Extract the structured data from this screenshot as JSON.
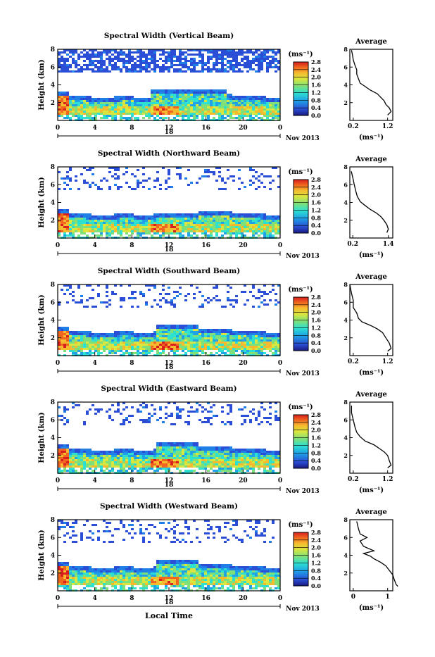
{
  "figure": {
    "xlabel": "Local Time",
    "ylabel": "Height (km)",
    "day_label": "18",
    "month_label": "Nov 2013",
    "colorbar_unit": "(ms⁻¹)",
    "avg_title": "Average",
    "avg_xlabel": "(ms⁻¹)"
  },
  "chart_data": [
    {
      "type": "heatmap",
      "title": "Spectral Width (Vertical Beam)",
      "xlim": [
        0,
        24
      ],
      "ylim": [
        0,
        8
      ],
      "x_ticks": [
        "0",
        "4",
        "8",
        "12",
        "16",
        "20",
        "0"
      ],
      "y_ticks": [
        "2",
        "4",
        "6",
        "8"
      ],
      "colorbar": {
        "min": 0.0,
        "max": 2.8,
        "ticks": [
          "0.0",
          "0.4",
          "0.8",
          "1.2",
          "1.6",
          "2.0",
          "2.4",
          "2.8"
        ]
      },
      "avg_profile": {
        "x_ticks": [
          "0.2",
          "1.2"
        ],
        "y_ticks": [
          "2",
          "4",
          "6",
          "8"
        ],
        "points": [
          [
            0.15,
            7.9
          ],
          [
            0.18,
            7.3
          ],
          [
            0.2,
            6.8
          ],
          [
            0.25,
            6.2
          ],
          [
            0.3,
            5.7
          ],
          [
            0.3,
            5.2
          ],
          [
            0.35,
            4.7
          ],
          [
            0.4,
            4.2
          ],
          [
            0.55,
            3.8
          ],
          [
            0.7,
            3.4
          ],
          [
            0.9,
            3.0
          ],
          [
            1.0,
            2.6
          ],
          [
            1.1,
            2.2
          ],
          [
            1.15,
            1.8
          ],
          [
            1.25,
            1.4
          ],
          [
            1.3,
            1.0
          ],
          [
            1.2,
            0.6
          ]
        ]
      }
    },
    {
      "type": "heatmap",
      "title": "Spectral Width (Northward Beam)",
      "xlim": [
        0,
        24
      ],
      "ylim": [
        0,
        8
      ],
      "x_ticks": [
        "0",
        "4",
        "8",
        "12",
        "16",
        "20",
        "0"
      ],
      "y_ticks": [
        "2",
        "4",
        "6",
        "8"
      ],
      "colorbar": {
        "min": 0.0,
        "max": 2.8,
        "ticks": [
          "0.0",
          "0.4",
          "0.8",
          "1.2",
          "1.6",
          "2.0",
          "2.4",
          "2.8"
        ]
      },
      "avg_profile": {
        "x_ticks": [
          "0.2",
          "1.4"
        ],
        "y_ticks": [
          "2",
          "4",
          "6",
          "8"
        ],
        "points": [
          [
            0.15,
            7.5
          ],
          [
            0.2,
            6.8
          ],
          [
            0.25,
            6.0
          ],
          [
            0.3,
            5.3
          ],
          [
            0.35,
            4.7
          ],
          [
            0.45,
            4.1
          ],
          [
            0.6,
            3.7
          ],
          [
            0.8,
            3.2
          ],
          [
            1.0,
            2.8
          ],
          [
            1.15,
            2.4
          ],
          [
            1.25,
            2.0
          ],
          [
            1.35,
            1.5
          ],
          [
            1.4,
            1.0
          ],
          [
            1.35,
            0.6
          ]
        ]
      }
    },
    {
      "type": "heatmap",
      "title": "Spectral Width (Southward Beam)",
      "xlim": [
        0,
        24
      ],
      "ylim": [
        0,
        8
      ],
      "x_ticks": [
        "0",
        "4",
        "8",
        "12",
        "16",
        "20",
        "0"
      ],
      "y_ticks": [
        "2",
        "4",
        "6",
        "8"
      ],
      "colorbar": {
        "min": 0.0,
        "max": 2.8,
        "ticks": [
          "0.0",
          "0.4",
          "0.8",
          "1.2",
          "1.6",
          "2.0",
          "2.4",
          "2.8"
        ]
      },
      "avg_profile": {
        "x_ticks": [
          "0.2",
          "1.2"
        ],
        "y_ticks": [
          "2",
          "4",
          "6",
          "8"
        ],
        "points": [
          [
            0.1,
            8.0
          ],
          [
            0.15,
            7.0
          ],
          [
            0.2,
            6.2
          ],
          [
            0.2,
            5.4
          ],
          [
            0.3,
            4.8
          ],
          [
            0.35,
            4.2
          ],
          [
            0.45,
            3.8
          ],
          [
            0.7,
            3.4
          ],
          [
            0.9,
            3.0
          ],
          [
            1.05,
            2.6
          ],
          [
            1.15,
            2.0
          ],
          [
            1.25,
            1.4
          ],
          [
            1.3,
            0.8
          ],
          [
            1.2,
            0.5
          ]
        ]
      }
    },
    {
      "type": "heatmap",
      "title": "Spectral Width (Eastward Beam)",
      "xlim": [
        0,
        24
      ],
      "ylim": [
        0,
        8
      ],
      "x_ticks": [
        "0",
        "4",
        "8",
        "12",
        "16",
        "20",
        "0"
      ],
      "y_ticks": [
        "2",
        "4",
        "6",
        "8"
      ],
      "colorbar": {
        "min": 0.0,
        "max": 2.8,
        "ticks": [
          "0.0",
          "0.4",
          "0.8",
          "1.2",
          "1.6",
          "2.0",
          "2.4",
          "2.8"
        ]
      },
      "avg_profile": {
        "x_ticks": [
          "0.2",
          "1.2"
        ],
        "y_ticks": [
          "2",
          "4",
          "6",
          "8"
        ],
        "points": [
          [
            0.15,
            7.6
          ],
          [
            0.15,
            6.8
          ],
          [
            0.2,
            6.0
          ],
          [
            0.25,
            5.2
          ],
          [
            0.3,
            4.6
          ],
          [
            0.4,
            4.1
          ],
          [
            0.55,
            3.6
          ],
          [
            0.8,
            3.2
          ],
          [
            0.95,
            2.8
          ],
          [
            1.1,
            2.4
          ],
          [
            1.2,
            2.0
          ],
          [
            1.25,
            1.4
          ],
          [
            1.3,
            0.9
          ],
          [
            1.2,
            0.6
          ]
        ]
      }
    },
    {
      "type": "heatmap",
      "title": "Spectral Width (Westward Beam)",
      "xlim": [
        0,
        24
      ],
      "ylim": [
        0,
        8
      ],
      "x_ticks": [
        "0",
        "4",
        "8",
        "12",
        "16",
        "20",
        "0"
      ],
      "y_ticks": [
        "2",
        "4",
        "6",
        "8"
      ],
      "colorbar": {
        "min": 0.0,
        "max": 2.8,
        "ticks": [
          "0.0",
          "0.4",
          "0.8",
          "1.2",
          "1.6",
          "2.0",
          "2.4",
          "2.8"
        ]
      },
      "avg_profile": {
        "x_ticks": [
          "0",
          "1"
        ],
        "y_ticks": [
          "2",
          "4",
          "6",
          "8"
        ],
        "points": [
          [
            0.1,
            7.8
          ],
          [
            0.15,
            7.0
          ],
          [
            0.2,
            6.4
          ],
          [
            0.4,
            6.0
          ],
          [
            0.2,
            5.6
          ],
          [
            0.3,
            5.0
          ],
          [
            0.6,
            4.5
          ],
          [
            0.3,
            4.2
          ],
          [
            0.5,
            3.9
          ],
          [
            0.6,
            3.6
          ],
          [
            0.8,
            3.2
          ],
          [
            0.95,
            2.8
          ],
          [
            1.05,
            2.3
          ],
          [
            1.15,
            1.8
          ],
          [
            1.2,
            1.2
          ],
          [
            1.25,
            0.7
          ],
          [
            1.3,
            0.5
          ]
        ]
      }
    }
  ]
}
